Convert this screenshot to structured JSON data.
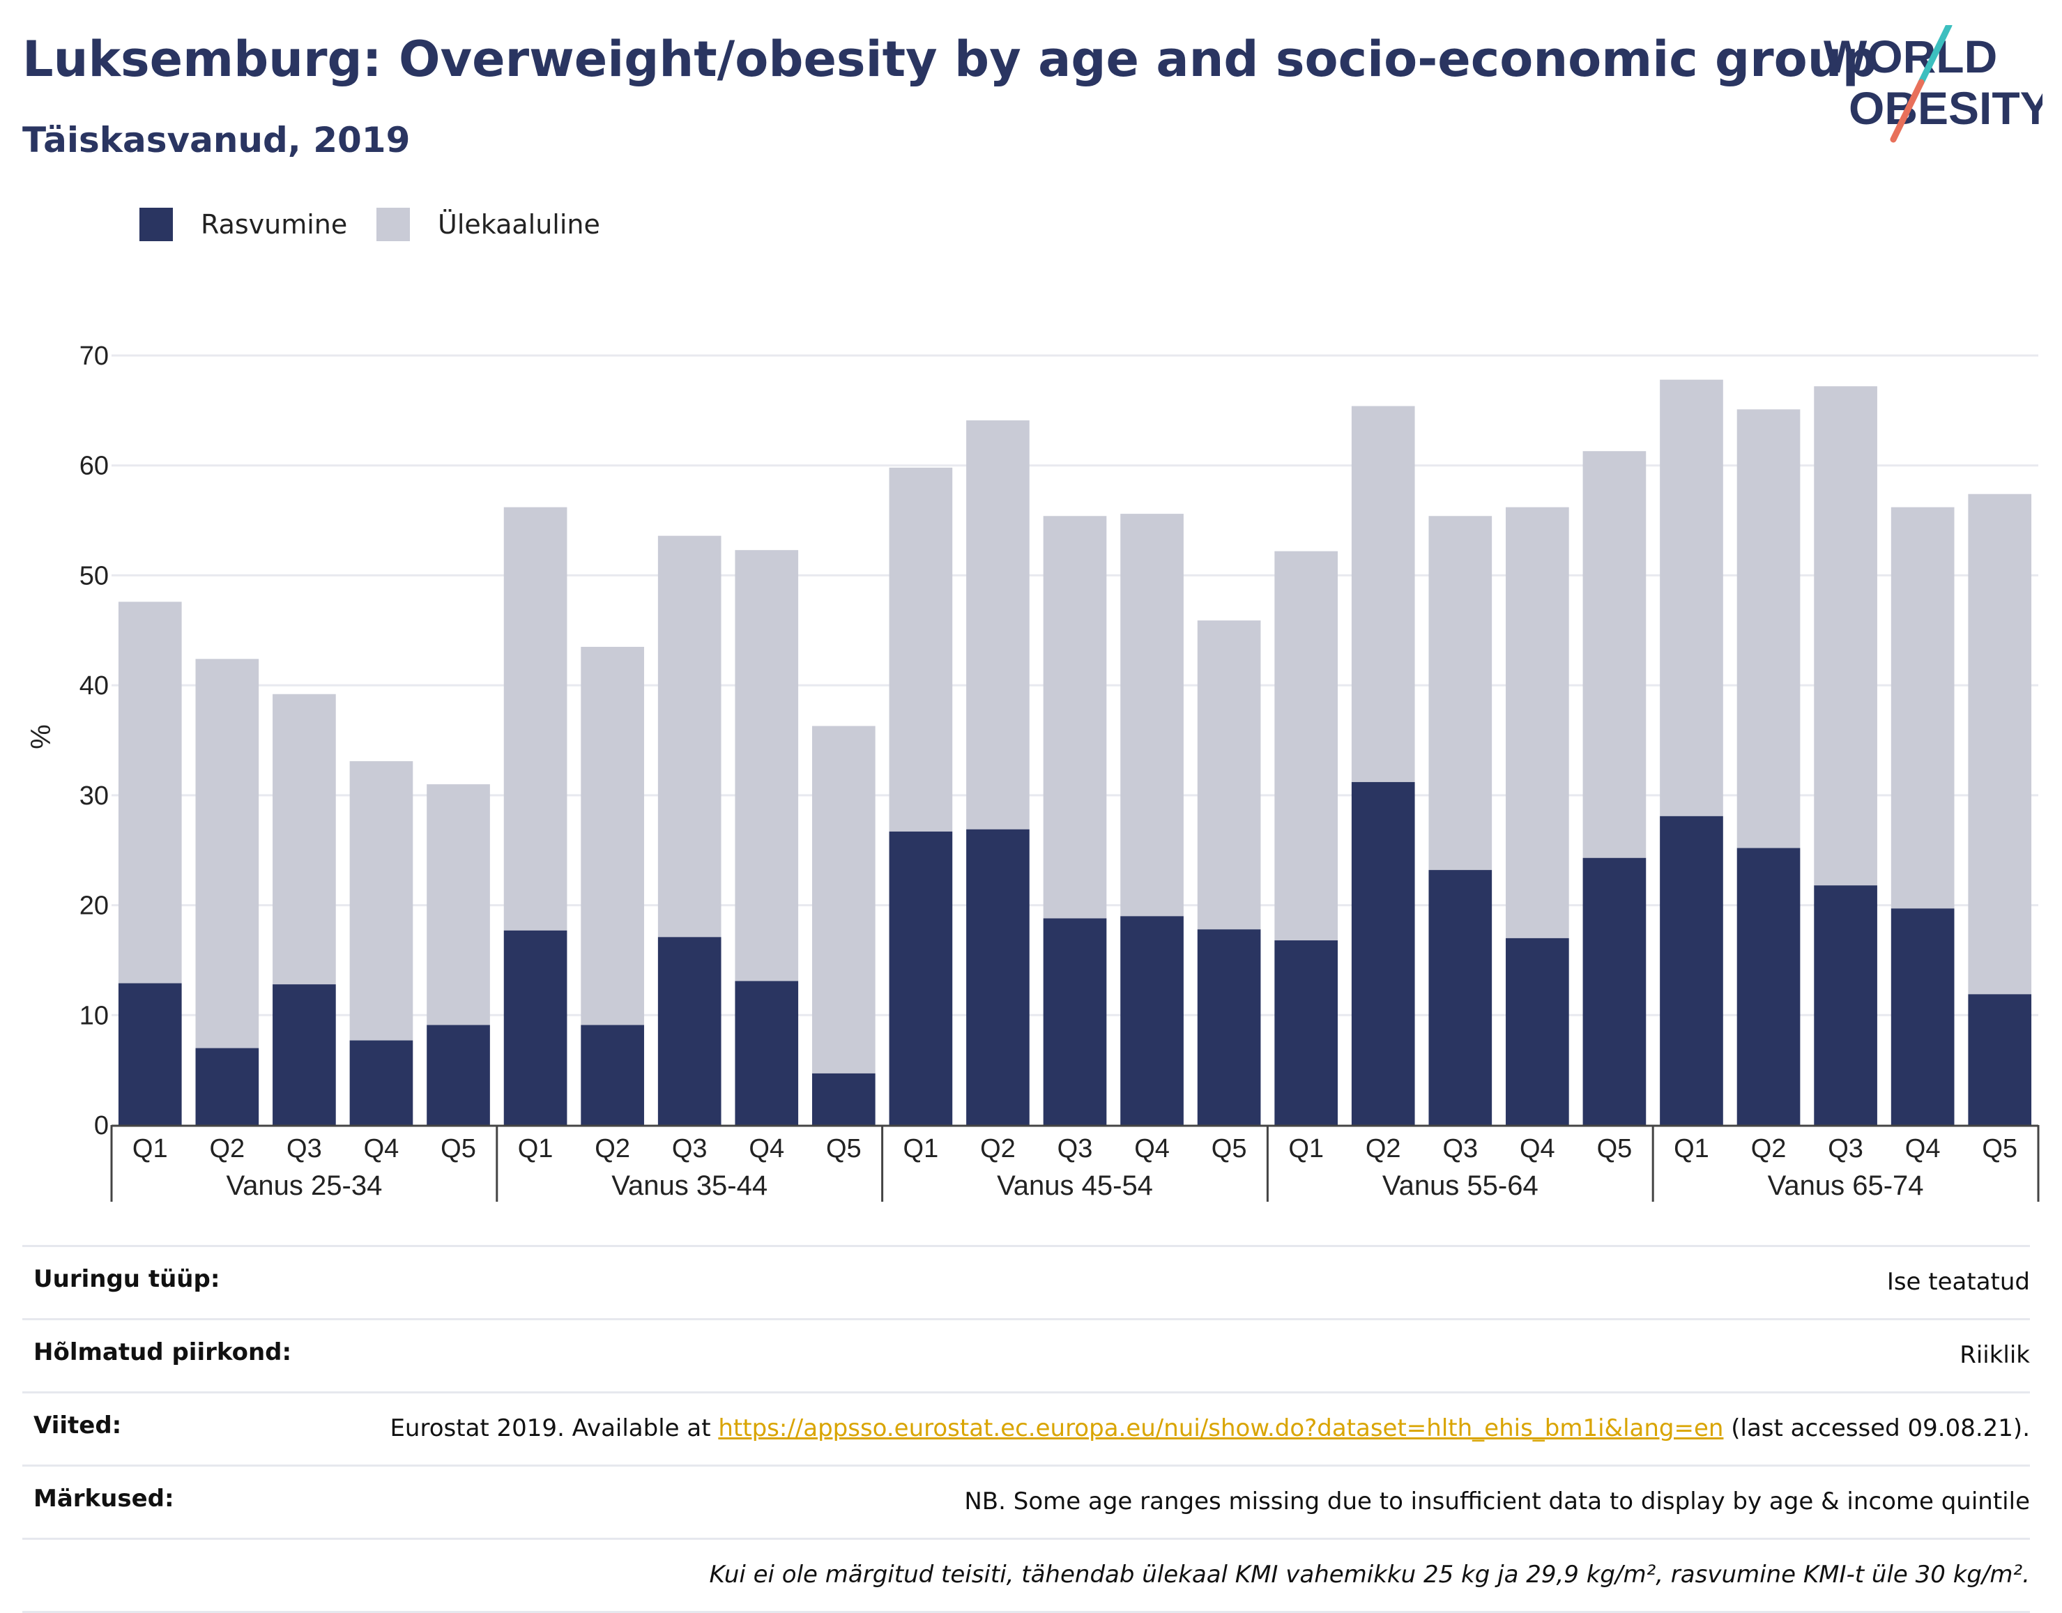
{
  "header": {
    "title": "Luksemburg: Overweight/obesity by age and socio-economic group",
    "subtitle": "Täiskasvanud, 2019",
    "logo_line1": "WORLD",
    "logo_line2": "OBESITY"
  },
  "legend": [
    {
      "label": "Rasvumine",
      "color": "#2a3561"
    },
    {
      "label": "Ülekaaluline",
      "color": "#c9cbd6"
    }
  ],
  "chart_data": {
    "type": "bar",
    "stacked": true,
    "ylabel": "%",
    "ylim": [
      0,
      70
    ],
    "yticks": [
      0,
      10,
      20,
      30,
      40,
      50,
      60,
      70
    ],
    "grid": true,
    "legend_position": "top-left",
    "groups": [
      "Vanus 25-34",
      "Vanus 35-44",
      "Vanus 45-54",
      "Vanus 55-64",
      "Vanus 65-74"
    ],
    "categories": [
      "Q1",
      "Q2",
      "Q3",
      "Q4",
      "Q5"
    ],
    "series": [
      {
        "name": "Rasvumine",
        "color": "#2a3561",
        "values": [
          [
            12.9,
            7.0,
            12.8,
            7.7,
            9.1
          ],
          [
            17.7,
            9.1,
            17.1,
            13.1,
            4.7
          ],
          [
            26.7,
            26.9,
            18.8,
            19.0,
            17.8
          ],
          [
            16.8,
            31.2,
            23.2,
            17.0,
            24.3
          ],
          [
            28.1,
            25.2,
            21.8,
            19.7,
            11.9
          ]
        ]
      },
      {
        "name": "Ülekaaluline",
        "color": "#c9cbd6",
        "values": [
          [
            34.7,
            35.4,
            26.4,
            25.4,
            21.9
          ],
          [
            38.5,
            34.4,
            36.5,
            39.2,
            31.6
          ],
          [
            33.1,
            37.2,
            36.6,
            36.6,
            28.1
          ],
          [
            35.4,
            34.2,
            32.2,
            39.2,
            37.0
          ],
          [
            39.7,
            39.9,
            45.4,
            36.5,
            45.5
          ]
        ]
      }
    ]
  },
  "footer": {
    "survey_label": "Uuringu tüüp:",
    "survey_value": "Ise teatatud",
    "area_label": "Hõlmatud piirkond:",
    "area_value": "Riiklik",
    "refs_label": "Viited:",
    "refs_prefix": "Eurostat 2019. Available at ",
    "refs_link": "https://appsso.eurostat.ec.europa.eu/nui/show.do?dataset=hlth_ehis_bm1i&lang=en",
    "refs_suffix": " (last accessed 09.08.21).",
    "notes_label": "Märkused:",
    "notes_value": "NB. Some age ranges missing due to insufficient data to display by age & income quintile",
    "definition": "Kui ei ole märgitud teisiti, tähendab ülekaal KMI vahemikku 25 kg ja 29,9 kg/m², rasvumine KMI-t üle 30 kg/m²."
  },
  "colors": {
    "brand": "#2a3561",
    "overweight": "#c9cbd6",
    "logo_teal": "#3cbfbf",
    "logo_coral": "#e8705a",
    "link": "#d9a400"
  }
}
